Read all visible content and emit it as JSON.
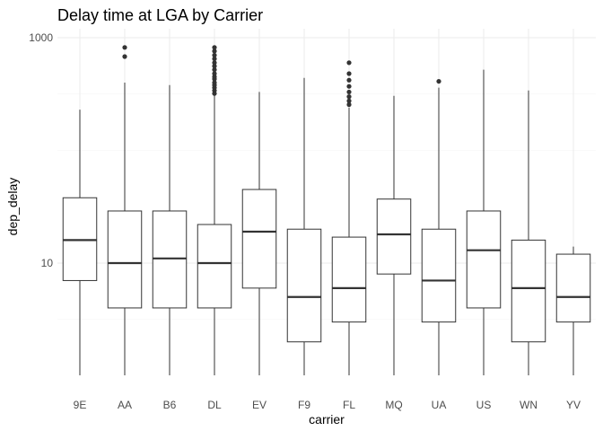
{
  "chart_data": {
    "type": "boxplot",
    "title": "Delay time at LGA by Carrier",
    "xlabel": "carrier",
    "ylabel": "dep_delay",
    "yscale": "log10",
    "ylim": [
      1,
      1000
    ],
    "yticks": [
      10,
      1000
    ],
    "ytick_labels": [
      "10",
      "1000"
    ],
    "grid": true,
    "categories": [
      "9E",
      "AA",
      "B6",
      "DL",
      "EV",
      "F9",
      "FL",
      "MQ",
      "UA",
      "US",
      "WN",
      "YV"
    ],
    "boxes": [
      {
        "carrier": "9E",
        "whisker_low": 1,
        "q1": 7,
        "median": 16,
        "q3": 38,
        "whisker_high": 230,
        "outliers": []
      },
      {
        "carrier": "AA",
        "whisker_low": 1,
        "q1": 4,
        "median": 10,
        "q3": 29,
        "whisker_high": 400,
        "outliers": [
          680,
          820
        ]
      },
      {
        "carrier": "B6",
        "whisker_low": 1,
        "q1": 4,
        "median": 11,
        "q3": 29,
        "whisker_high": 380,
        "outliers": []
      },
      {
        "carrier": "DL",
        "whisker_low": 1,
        "q1": 4,
        "median": 10,
        "q3": 22,
        "whisker_high": 315,
        "outliers": [
          320,
          340,
          360,
          380,
          400,
          430,
          450,
          480,
          520,
          560,
          600,
          650,
          700,
          760,
          820
        ]
      },
      {
        "carrier": "EV",
        "whisker_low": 1,
        "q1": 6,
        "median": 19,
        "q3": 45,
        "whisker_high": 330,
        "outliers": []
      },
      {
        "carrier": "F9",
        "whisker_low": 1,
        "q1": 2,
        "median": 5,
        "q3": 20,
        "whisker_high": 440,
        "outliers": []
      },
      {
        "carrier": "FL",
        "whisker_low": 1,
        "q1": 3,
        "median": 6,
        "q3": 17,
        "whisker_high": 240,
        "outliers": [
          255,
          275,
          300,
          330,
          370,
          420,
          480,
          600
        ]
      },
      {
        "carrier": "MQ",
        "whisker_low": 1,
        "q1": 8,
        "median": 18,
        "q3": 37,
        "whisker_high": 305,
        "outliers": []
      },
      {
        "carrier": "UA",
        "whisker_low": 1,
        "q1": 3,
        "median": 7,
        "q3": 20,
        "whisker_high": 360,
        "outliers": [
          410
        ]
      },
      {
        "carrier": "US",
        "whisker_low": 1,
        "q1": 4,
        "median": 13,
        "q3": 29,
        "whisker_high": 520,
        "outliers": []
      },
      {
        "carrier": "WN",
        "whisker_low": 1,
        "q1": 2,
        "median": 6,
        "q3": 16,
        "whisker_high": 340,
        "outliers": []
      },
      {
        "carrier": "YV",
        "whisker_low": 1,
        "q1": 3,
        "median": 5,
        "q3": 12,
        "whisker_high": 14,
        "outliers": []
      }
    ]
  }
}
